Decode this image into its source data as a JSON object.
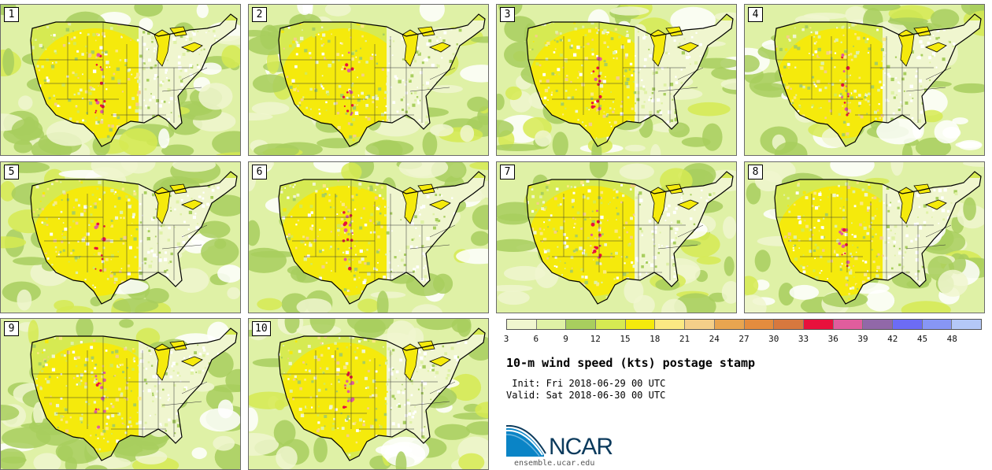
{
  "members": [
    {
      "label": "1"
    },
    {
      "label": "2"
    },
    {
      "label": "3"
    },
    {
      "label": "4"
    },
    {
      "label": "5"
    },
    {
      "label": "6"
    },
    {
      "label": "7"
    },
    {
      "label": "8"
    },
    {
      "label": "9"
    },
    {
      "label": "10"
    }
  ],
  "colorbar": {
    "colors": [
      "#f0f6cf",
      "#dff1a6",
      "#a8ce5e",
      "#d6ea52",
      "#f5ea0c",
      "#fbe983",
      "#f4cf89",
      "#e8a550",
      "#e48c3e",
      "#d7783e",
      "#e8113c",
      "#e05d9d",
      "#9168a8",
      "#6c6cf5",
      "#8796f5",
      "#b4c8f7"
    ],
    "tick_values": [
      "3",
      "6",
      "9",
      "12",
      "15",
      "18",
      "21",
      "24",
      "27",
      "30",
      "33",
      "36",
      "39",
      "42",
      "45",
      "48"
    ]
  },
  "title": "10-m wind speed (kts) postage stamp",
  "init_text": " Init: Fri 2018-06-29 00 UTC",
  "valid_text": "Valid: Sat 2018-06-30 00 UTC",
  "logo": {
    "name": "NCAR",
    "url": "ensemble.ucar.edu"
  }
}
